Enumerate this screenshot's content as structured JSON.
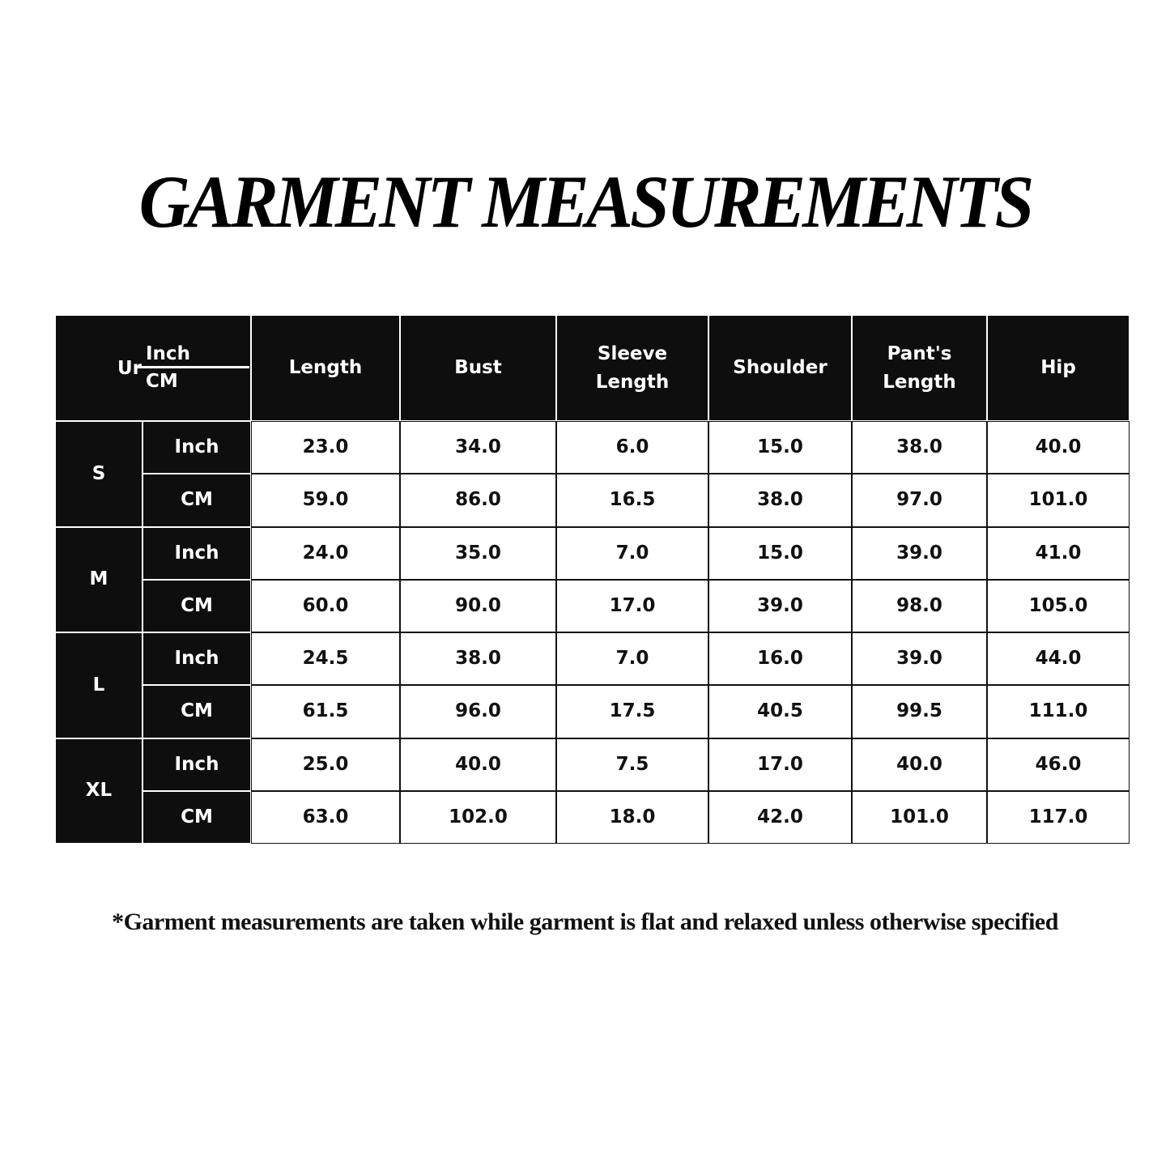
{
  "title": "GARMENT MEASUREMENTS",
  "footnote": "*Garment measurements are taken while garment is flat and relaxed unless otherwise specified",
  "table": {
    "corner": {
      "label": "Ur",
      "top_unit": "Inch",
      "bottom_unit": "CM"
    },
    "columns": [
      "Length",
      "Bust",
      "Sleeve Length",
      "Shoulder",
      "Pant's Length",
      "Hip"
    ],
    "sizes": [
      {
        "size": "S",
        "rows": [
          {
            "unit": "Inch",
            "values": [
              "23.0",
              "34.0",
              "6.0",
              "15.0",
              "38.0",
              "40.0"
            ]
          },
          {
            "unit": "CM",
            "values": [
              "59.0",
              "86.0",
              "16.5",
              "38.0",
              "97.0",
              "101.0"
            ]
          }
        ]
      },
      {
        "size": "M",
        "rows": [
          {
            "unit": "Inch",
            "values": [
              "24.0",
              "35.0",
              "7.0",
              "15.0",
              "39.0",
              "41.0"
            ]
          },
          {
            "unit": "CM",
            "values": [
              "60.0",
              "90.0",
              "17.0",
              "39.0",
              "98.0",
              "105.0"
            ]
          }
        ]
      },
      {
        "size": "L",
        "rows": [
          {
            "unit": "Inch",
            "values": [
              "24.5",
              "38.0",
              "7.0",
              "16.0",
              "39.0",
              "44.0"
            ]
          },
          {
            "unit": "CM",
            "values": [
              "61.5",
              "96.0",
              "17.5",
              "40.5",
              "99.5",
              "111.0"
            ]
          }
        ]
      },
      {
        "size": "XL",
        "rows": [
          {
            "unit": "Inch",
            "values": [
              "25.0",
              "40.0",
              "7.5",
              "17.0",
              "40.0",
              "46.0"
            ]
          },
          {
            "unit": "CM",
            "values": [
              "63.0",
              "102.0",
              "18.0",
              "42.0",
              "101.0",
              "117.0"
            ]
          }
        ]
      }
    ]
  }
}
